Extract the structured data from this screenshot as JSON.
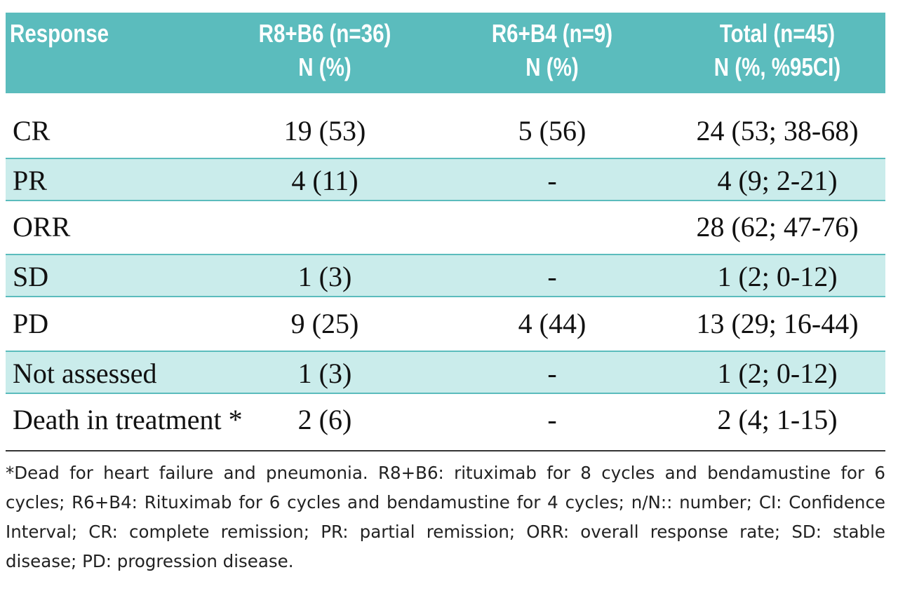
{
  "table": {
    "header": [
      [
        "Response"
      ],
      [
        "R8+B6 (n=36)",
        "N (%)"
      ],
      [
        "R6+B4 (n=9)",
        "N (%)"
      ],
      [
        "Total (n=45)",
        "N (%,  %95CI)"
      ]
    ],
    "rows": [
      [
        "CR",
        "19 (53)",
        "5 (56)",
        "24 (53; 38-68)"
      ],
      [
        "PR",
        "4 (11)",
        "-",
        "4 (9; 2-21)"
      ],
      [
        "ORR",
        null,
        null,
        "28 (62; 47-76)"
      ],
      [
        "SD",
        "1 (3)",
        "-",
        "1 (2; 0-12)"
      ],
      [
        "PD",
        "9 (25)",
        "4 (44)",
        "13 (29; 16-44)"
      ],
      [
        "Not assessed",
        "1 (3)",
        "-",
        "1 (2; 0-12)"
      ],
      [
        "Death in treatment *",
        "2 (6)",
        "-",
        "2 (4; 1-15)"
      ]
    ],
    "footnote": "*Dead for heart failure and pneumonia. R8+B6: rituximab for 8 cycles and bendamustine for 6 cycles; R6+B4: Rituximab for 6 cycles and bendamustine for 4 cycles; n/N:: number; CI: Confidence Interval; CR: complete remission; PR: partial remission; ORR: overall response rate; SD: stable disease; PD: progression disease."
  }
}
